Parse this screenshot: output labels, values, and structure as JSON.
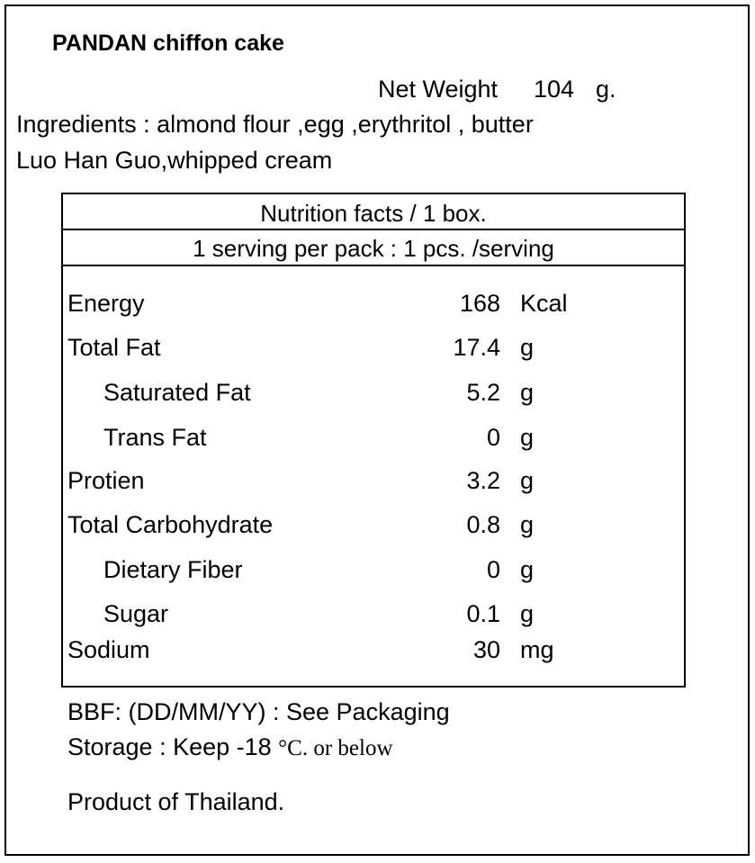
{
  "header": {
    "title": "PANDAN chiffon cake",
    "net_weight": {
      "label": "Net Weight",
      "amount": "104",
      "unit": "g."
    }
  },
  "ingredients": [
    "Ingredients : almond flour ,egg ,erythritol , butter",
    "Luo Han Guo,whipped cream"
  ],
  "table": {
    "title": "Nutrition facts / 1 box.",
    "serving": "1 serving per pack : 1 pcs. /serving",
    "rows": [
      [
        "Energy",
        "168",
        "Kcal"
      ],
      [
        "Total Fat",
        "17.4",
        "g"
      ],
      [
        "Saturated Fat",
        "5.2",
        "g"
      ],
      [
        "Trans Fat",
        "0",
        "g"
      ],
      [
        "Protien",
        "3.2",
        "g"
      ],
      [
        "Total Carbohydrate",
        "0.8",
        "g"
      ],
      [
        "Dietary Fiber",
        "0",
        "g"
      ],
      [
        "Sugar",
        "0.1",
        "g"
      ],
      [
        "Sodium",
        "30",
        "mg"
      ]
    ]
  },
  "footer": {
    "bbf": "BBF: (DD/MM/YY) : See Packaging",
    "storage": "Storage : Keep -18",
    "storage_unit": "°C. or below",
    "origin": "Product of Thailand."
  }
}
